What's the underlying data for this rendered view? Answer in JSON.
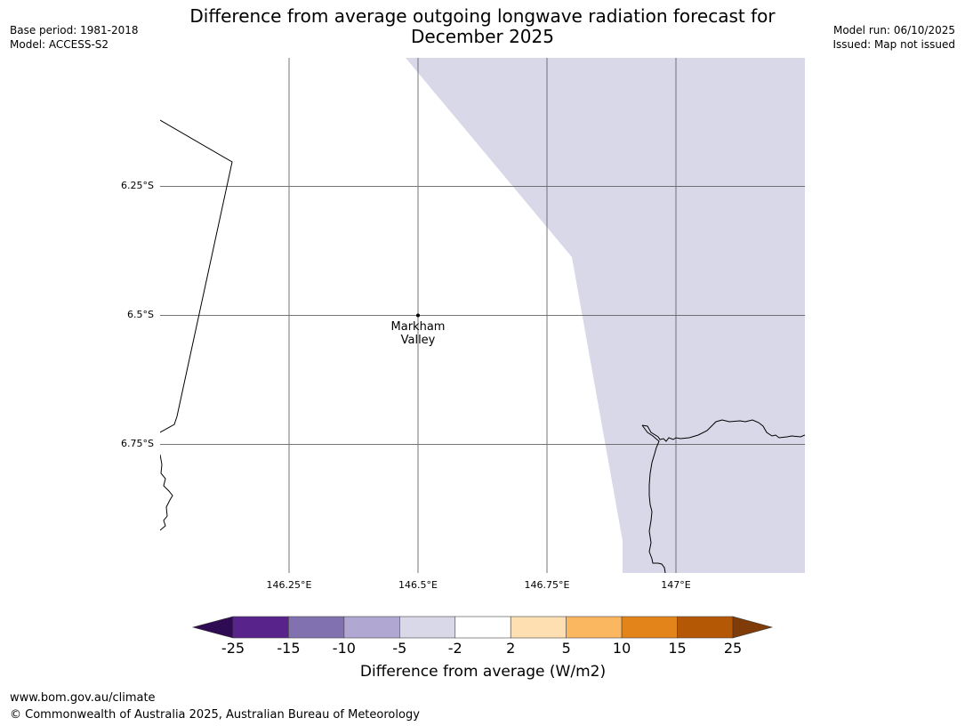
{
  "header": {
    "title_line1": "Difference from average outgoing longwave radiation forecast for",
    "title_line2": "December 2025",
    "base_period": "Base period: 1981-2018",
    "model": "Model: ACCESS-S2",
    "model_run": "Model run: 06/10/2025",
    "issued": "Issued: Map not issued"
  },
  "map": {
    "lat_labels": [
      "6.25°S",
      "6.5°S",
      "6.75°S"
    ],
    "lon_labels": [
      "146.25°E",
      "146.5°E",
      "146.75°E",
      "147°E"
    ],
    "place": {
      "line1": "Markham",
      "line2": "Valley"
    },
    "shaded_category": "-5 to -2",
    "shade_color": "#d8d8e9"
  },
  "colorbar": {
    "label": "Difference from average (W/m2)",
    "ticks": [
      "-25",
      "-15",
      "-10",
      "-5",
      "-2",
      "2",
      "5",
      "10",
      "15",
      "25"
    ],
    "colors": [
      "#59238c",
      "#8171b0",
      "#b0a8d2",
      "#d8d8e9",
      "#ffffff",
      "#fedfb1",
      "#fbb760",
      "#e28419",
      "#b45806"
    ],
    "under_color": "#2f0b53",
    "over_color": "#7f3b08"
  },
  "footer": {
    "url": "www.bom.gov.au/climate",
    "copyright": "© Commonwealth of Australia 2025, Australian Bureau of Meteorology"
  }
}
